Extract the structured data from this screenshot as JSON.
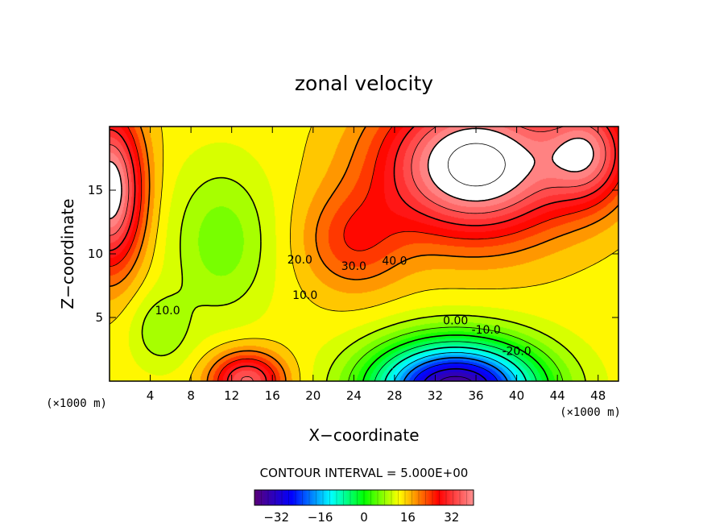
{
  "chart_data": {
    "type": "heatmap",
    "title": "zonal velocity",
    "xlabel": "X−coordinate",
    "ylabel": "Z−coordinate",
    "x_units": "(×1000 m)",
    "z_units": "(×1000 m)",
    "xlim": [
      0,
      50
    ],
    "ylim": [
      0,
      20
    ],
    "x_ticks": [
      4,
      8,
      12,
      16,
      20,
      24,
      28,
      32,
      36,
      40,
      44,
      48
    ],
    "y_ticks": [
      5,
      10,
      15
    ],
    "contour_interval_text": "CONTOUR INTERVAL = 5.000E+00",
    "contour_labels": [
      {
        "text": "20.0",
        "x": 18.7,
        "z": 9.5
      },
      {
        "text": "30.0",
        "x": 24.0,
        "z": 9.0
      },
      {
        "text": "40.0",
        "x": 28.0,
        "z": 9.4
      },
      {
        "text": "10.0",
        "x": 19.2,
        "z": 6.7
      },
      {
        "text": "10.0",
        "x": 5.7,
        "z": 5.5
      },
      {
        "text": "0.00",
        "x": 34.0,
        "z": 4.7
      },
      {
        "text": "-10.0",
        "x": 37.0,
        "z": 4.0
      },
      {
        "text": "-20.0",
        "x": 40.0,
        "z": 2.3
      }
    ],
    "colorbar": {
      "min": -40,
      "max": 40,
      "tick_values": [
        -32,
        -16,
        0,
        16,
        32
      ],
      "tick_labels": [
        "−32",
        "−16",
        "0",
        "16",
        "32"
      ],
      "colors": [
        "#5a0078",
        "#0000ff",
        "#00ffff",
        "#00ff00",
        "#ffff00",
        "#ff0000",
        "#ff9090"
      ]
    },
    "features": [
      {
        "name": "strong eastward jet (above colorbar range)",
        "x_center": 34,
        "z_center": 15.5,
        "value": 45
      },
      {
        "name": "western upper maximum",
        "x_center": 0,
        "z_center": 15,
        "value": 40
      },
      {
        "name": "surface westward minimum",
        "x_center": 34,
        "z_center": 0,
        "value": -35
      },
      {
        "name": "surface maximum near x=13",
        "x_center": 13.5,
        "z_center": 0,
        "value": 30
      }
    ]
  }
}
